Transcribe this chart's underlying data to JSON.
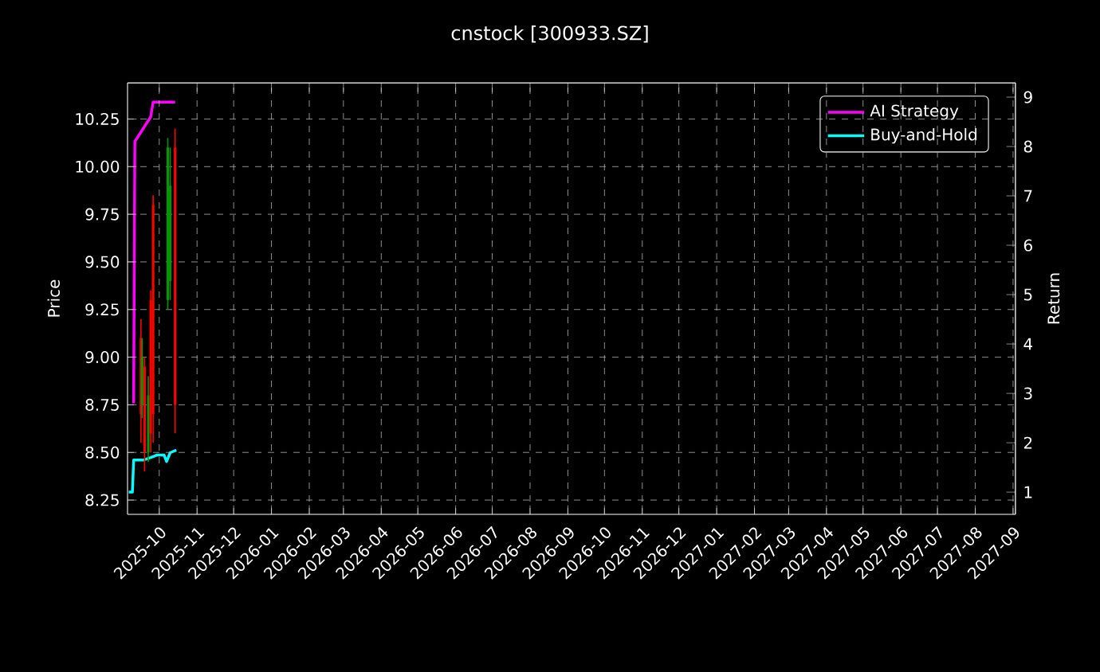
{
  "chart_data": {
    "type": "candlestick",
    "title": "cnstock [300933.SZ]",
    "ylabel": "Price",
    "y2label": "Return",
    "x": [
      "2025-09-16",
      "2025-09-17",
      "2025-09-19",
      "2025-09-22",
      "2025-09-24",
      "2025-09-26",
      "2025-10-08",
      "2025-10-10",
      "2025-10-14"
    ],
    "ohlc": [
      [
        9.1,
        9.2,
        8.55,
        8.7
      ],
      [
        8.75,
        9.1,
        8.68,
        9.0
      ],
      [
        8.95,
        9.0,
        8.4,
        8.5
      ],
      [
        8.5,
        8.9,
        8.45,
        8.8
      ],
      [
        9.3,
        9.35,
        8.5,
        8.6
      ],
      [
        9.8,
        9.85,
        8.55,
        8.7
      ],
      [
        9.3,
        10.15,
        9.25,
        10.1
      ],
      [
        9.4,
        10.1,
        9.3,
        9.9
      ],
      [
        10.1,
        10.2,
        8.6,
        8.75
      ]
    ],
    "series": [
      {
        "type": "line",
        "name": "AI Strategy",
        "color": "#ff00ff",
        "axis": "y2",
        "x": [
          "2025-09-10",
          "2025-09-11",
          "2025-09-24",
          "2025-09-26",
          "2025-10-14"
        ],
        "values": [
          2.8,
          8.1,
          8.6,
          8.9,
          8.9
        ]
      },
      {
        "type": "line",
        "name": "Buy-and-Hold",
        "color": "#00ffff",
        "axis": "y2",
        "x": [
          "2025-09-06",
          "2025-09-09",
          "2025-09-10",
          "2025-09-18",
          "2025-09-24",
          "2025-09-29",
          "2025-10-05",
          "2025-10-07",
          "2025-10-10",
          "2025-10-15"
        ],
        "values": [
          1.0,
          1.0,
          1.65,
          1.65,
          1.7,
          1.75,
          1.75,
          1.62,
          1.8,
          1.85
        ]
      }
    ],
    "xlim": [
      "2025-09-05",
      "2027-09-03"
    ],
    "xticks": [
      "2025-10",
      "2025-11",
      "2025-12",
      "2026-01",
      "2026-02",
      "2026-03",
      "2026-04",
      "2026-05",
      "2026-06",
      "2026-07",
      "2026-08",
      "2026-09",
      "2026-10",
      "2026-11",
      "2026-12",
      "2027-01",
      "2027-02",
      "2027-03",
      "2027-04",
      "2027-05",
      "2027-06",
      "2027-07",
      "2027-08",
      "2027-09"
    ],
    "ylim": [
      8.175,
      10.44
    ],
    "yticks": [
      8.25,
      {
        "value": 8.5,
        "label": "8.50"
      },
      8.75,
      {
        "value": 9.0,
        "label": "9.00"
      },
      9.25,
      {
        "value": 9.5,
        "label": "9.50"
      },
      9.75,
      {
        "value": 10.0,
        "label": "10.00"
      },
      10.25
    ],
    "y2lim": [
      0.55,
      9.29
    ],
    "y2ticks": [
      1,
      2,
      3,
      4,
      5,
      6,
      7,
      8,
      9
    ],
    "grid": true,
    "legend": "top right"
  }
}
